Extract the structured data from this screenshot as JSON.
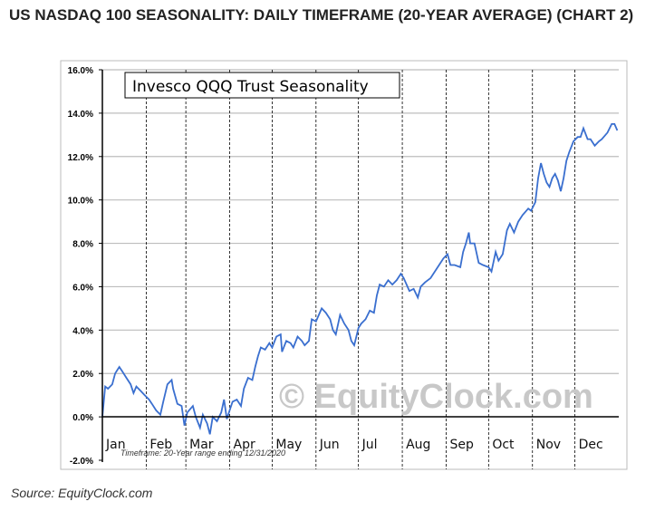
{
  "header": {
    "title": "US NASDAQ 100 SEASONALITY: DAILY TIMEFRAME (20-YEAR AVERAGE) (CHART 2)",
    "source": "Source: EquityClock.com"
  },
  "chart_data": {
    "type": "line",
    "title": "Invesco QQQ Trust Seasonality",
    "watermark": "© EquityClock.com",
    "footnote": "Timeframe: 20-Year range ending 12/31/2020",
    "xlabel": "",
    "ylabel": "",
    "ylim": [
      -2,
      16
    ],
    "yticks": [
      -2,
      0,
      2,
      4,
      6,
      8,
      10,
      12,
      14,
      16
    ],
    "ytick_labels": [
      "-2.0%",
      "0.0%",
      "2.0%",
      "4.0%",
      "6.0%",
      "8.0%",
      "10.0%",
      "12.0%",
      "14.0%",
      "16.0%"
    ],
    "xlim": [
      1,
      365
    ],
    "months": [
      "Jan",
      "Feb",
      "Mar",
      "Apr",
      "May",
      "Jun",
      "Jul",
      "Aug",
      "Sep",
      "Oct",
      "Nov",
      "Dec"
    ],
    "month_start_days": [
      1,
      32,
      60,
      91,
      121,
      152,
      182,
      213,
      244,
      274,
      305,
      335
    ],
    "grid": true,
    "line_color": "#3a6fcf",
    "series": [
      {
        "x": [
          1,
          3,
          5,
          8,
          10,
          13,
          15,
          18,
          21,
          23,
          25,
          28,
          31,
          34,
          36,
          39,
          42,
          44,
          47,
          50,
          51,
          54,
          57,
          59,
          61,
          65,
          67,
          70,
          72,
          75,
          77,
          79,
          82,
          85,
          87,
          89,
          91,
          93,
          96,
          99,
          101,
          104,
          107,
          109,
          111,
          113,
          116,
          119,
          121,
          124,
          127,
          128,
          131,
          134,
          136,
          139,
          142,
          144,
          147,
          149,
          152,
          154,
          156,
          159,
          162,
          164,
          166,
          169,
          172,
          175,
          177,
          179,
          182,
          184,
          187,
          190,
          193,
          195,
          197,
          200,
          203,
          206,
          209,
          212,
          214,
          216,
          218,
          221,
          224,
          226,
          229,
          233,
          235,
          239,
          242,
          245,
          247,
          250,
          254,
          256,
          258,
          260,
          261,
          264,
          267,
          270,
          274,
          276,
          279,
          281,
          284,
          287,
          289,
          292,
          295,
          298,
          302,
          304,
          307,
          309,
          311,
          313,
          315,
          317,
          319,
          321,
          323,
          325,
          327,
          329,
          331,
          334,
          337,
          339,
          341,
          344,
          346,
          349,
          352,
          354,
          358,
          361,
          363,
          365
        ],
        "y": [
          0,
          1.4,
          1.3,
          1.5,
          2.0,
          2.3,
          2.1,
          1.8,
          1.5,
          1.1,
          1.4,
          1.2,
          1.0,
          0.8,
          0.6,
          0.3,
          0.1,
          0.7,
          1.5,
          1.7,
          1.3,
          0.6,
          0.5,
          -0.4,
          0.2,
          0.5,
          0,
          -0.5,
          0.1,
          -0.3,
          -0.8,
          0,
          -0.2,
          0.2,
          0.8,
          -0.1,
          0.3,
          0.7,
          0.8,
          0.5,
          1.3,
          1.8,
          1.7,
          2.3,
          2.8,
          3.2,
          3.1,
          3.4,
          3.2,
          3.7,
          3.8,
          3.0,
          3.5,
          3.4,
          3.2,
          3.7,
          3.5,
          3.3,
          3.5,
          4.5,
          4.4,
          4.7,
          5.0,
          4.8,
          4.5,
          4.0,
          3.8,
          4.7,
          4.3,
          4.0,
          3.5,
          3.3,
          4.1,
          4.3,
          4.5,
          4.9,
          4.8,
          5.6,
          6.1,
          6.0,
          6.3,
          6.1,
          6.3,
          6.6,
          6.4,
          6.1,
          5.8,
          5.9,
          5.5,
          6.0,
          6.2,
          6.4,
          6.6,
          7.0,
          7.3,
          7.5,
          7.0,
          7.0,
          6.9,
          7.6,
          8.0,
          8.5,
          8.0,
          8.0,
          7.1,
          7.0,
          6.9,
          6.7,
          7.6,
          7.2,
          7.5,
          8.6,
          8.9,
          8.5,
          9.0,
          9.3,
          9.6,
          9.5,
          9.9,
          11.0,
          11.7,
          11.2,
          10.8,
          10.6,
          11.0,
          11.2,
          10.9,
          10.4,
          11.0,
          11.8,
          12.2,
          12.7,
          12.9,
          12.9,
          13.3,
          12.8,
          12.8,
          12.5,
          12.7,
          12.8,
          13.1,
          13.5,
          13.5,
          13.2
        ]
      }
    ]
  }
}
